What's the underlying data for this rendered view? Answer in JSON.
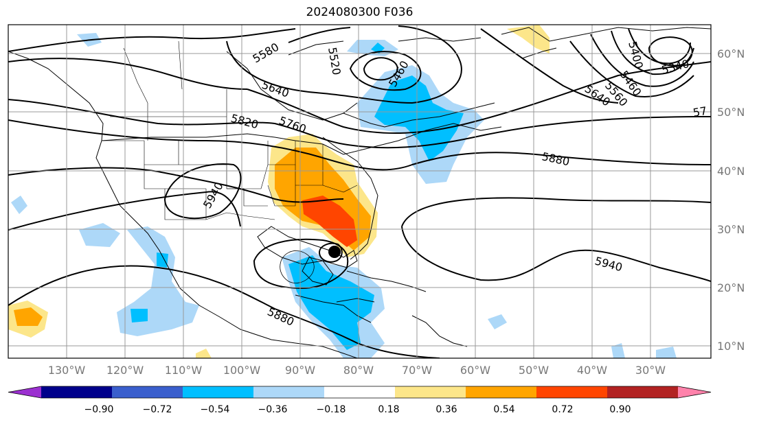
{
  "title": "2024080300 F036",
  "lon_labels": [
    "130°W",
    "120°W",
    "110°W",
    "100°W",
    "90°W",
    "80°W",
    "70°W",
    "60°W",
    "50°W",
    "40°W",
    "30°W"
  ],
  "lat_labels": [
    "60°N",
    "50°N",
    "40°N",
    "30°N",
    "20°N",
    "10°N"
  ],
  "contour_labels": [
    "5580",
    "5520",
    "5460",
    "5400",
    "5340",
    "5460",
    "5560",
    "5640",
    "5640",
    "5760",
    "5820",
    "5880",
    "5940",
    "5940",
    "5880",
    "57"
  ],
  "colorbar": {
    "ticks": [
      "−0.90",
      "−0.72",
      "−0.54",
      "−0.36",
      "−0.18",
      "0.18",
      "0.36",
      "0.54",
      "0.72",
      "0.90"
    ],
    "colors": [
      "#9b30d0",
      "#00008b",
      "#3a5fcd",
      "#00bfff",
      "#add8f8",
      "#ffffff",
      "#fce68a",
      "#ffa500",
      "#ff4500",
      "#b22222",
      "#ff82ab"
    ]
  },
  "storm_marker": "hurricane-center"
}
